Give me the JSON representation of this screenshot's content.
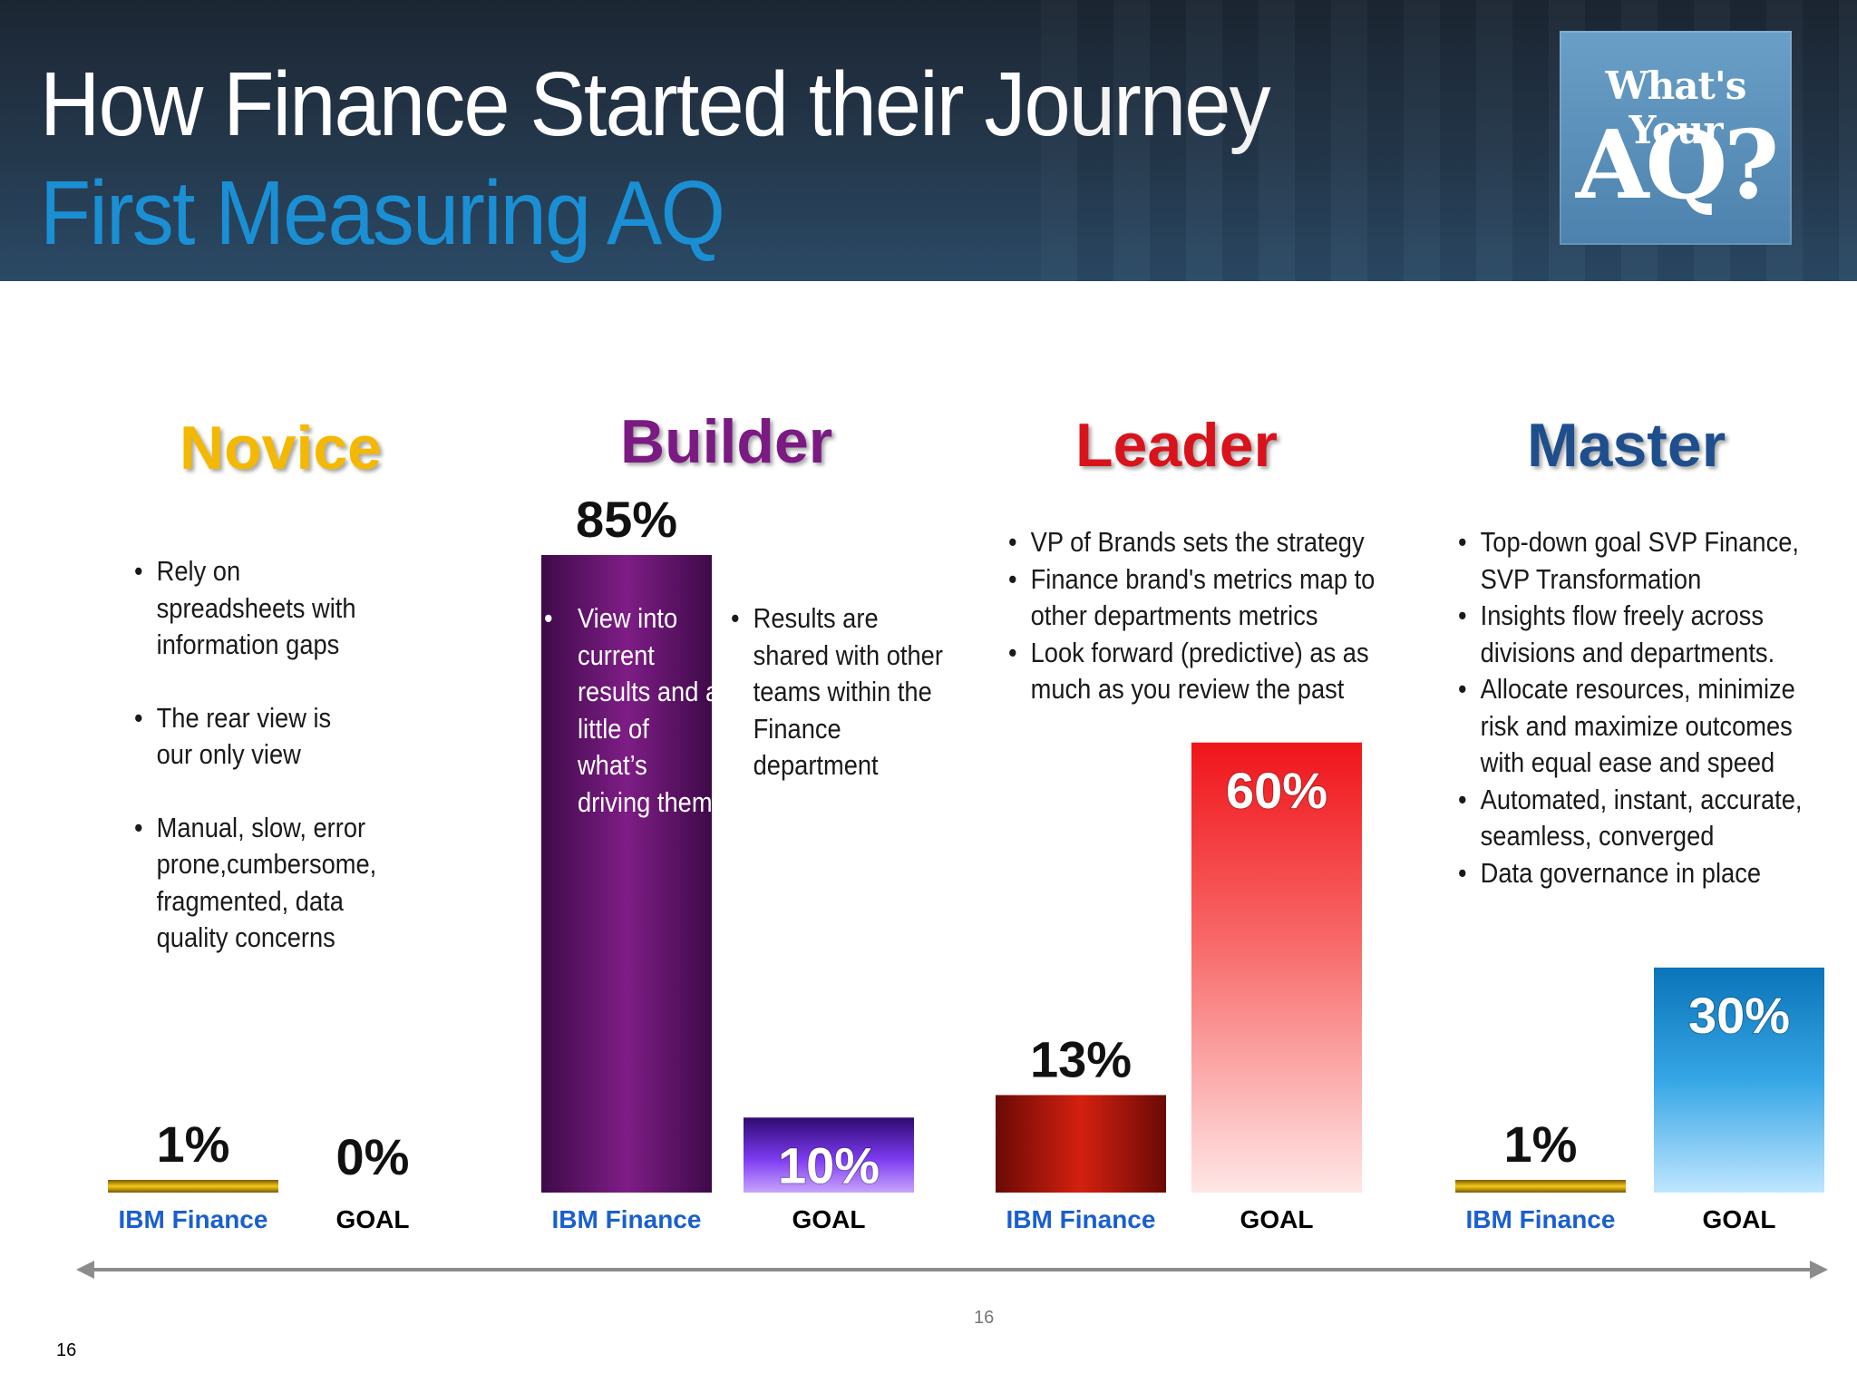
{
  "header": {
    "title": "How Finance Started their Journey",
    "subtitle": "First Measuring AQ",
    "logo_line1": "What's Your",
    "logo_line2": "AQ?"
  },
  "stages": [
    {
      "name": "Novice",
      "color": "#f5b800",
      "bullets": [
        "Rely on spreadsheets with information gaps",
        "The rear view is our only view",
        "Manual, slow, error prone,cumbersome, fragmented, data quality concerns"
      ]
    },
    {
      "name": "Builder",
      "color": "#7a1a82",
      "bullets_in_bar": [
        "View into current results and a little of what’s driving them"
      ],
      "bullets": [
        "Results are shared with other teams within the Finance department"
      ]
    },
    {
      "name": "Leader",
      "color": "#d8131c",
      "bullets": [
        "VP of Brands sets the strategy",
        "Finance brand's metrics map to other departments metrics",
        "Look forward (predictive) as as much as you review the past"
      ]
    },
    {
      "name": "Master",
      "color": "#1f4e8c",
      "bullets": [
        "Top-down goal SVP Finance, SVP Transformation",
        "Insights flow freely across divisions and departments.",
        "Allocate resources, minimize risk and maximize outcomes with equal ease and speed",
        "Automated, instant, accurate, seamless, converged",
        "Data governance in place"
      ]
    }
  ],
  "chart_data": {
    "type": "bar",
    "categories": [
      "IBM Finance",
      "GOAL",
      "IBM Finance",
      "GOAL",
      "IBM Finance",
      "GOAL",
      "IBM Finance",
      "GOAL"
    ],
    "values": [
      1,
      0,
      85,
      10,
      13,
      60,
      1,
      30
    ],
    "value_labels": [
      "1%",
      "0%",
      "85%",
      "10%",
      "13%",
      "60%",
      "1%",
      "30%"
    ],
    "groups": [
      "Novice",
      "Novice",
      "Builder",
      "Builder",
      "Leader",
      "Leader",
      "Master",
      "Master"
    ],
    "ylim": [
      0,
      85
    ]
  },
  "page_number": "16",
  "corner_page_number": "16"
}
